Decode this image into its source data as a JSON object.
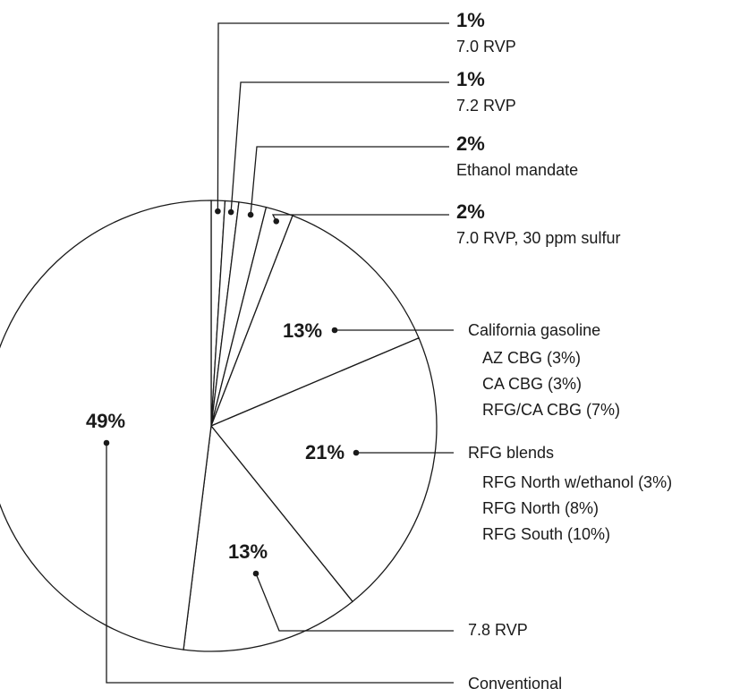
{
  "chart_data": {
    "type": "pie",
    "title": "",
    "slices": [
      {
        "value": 1,
        "label_pct": "1%",
        "name": "7.0 RVP",
        "details": []
      },
      {
        "value": 1,
        "label_pct": "1%",
        "name": "7.2 RVP",
        "details": []
      },
      {
        "value": 2,
        "label_pct": "2%",
        "name": "Ethanol mandate",
        "details": []
      },
      {
        "value": 2,
        "label_pct": "2%",
        "name": "7.0 RVP, 30 ppm sulfur",
        "details": []
      },
      {
        "value": 13,
        "label_pct": "13%",
        "name": "California gasoline",
        "details": [
          "AZ CBG (3%)",
          "CA CBG (3%)",
          "RFG/CA CBG (7%)"
        ]
      },
      {
        "value": 21,
        "label_pct": "21%",
        "name": "RFG blends",
        "details": [
          "RFG North w/ethanol (3%)",
          "RFG North (8%)",
          "RFG South (10%)"
        ]
      },
      {
        "value": 13,
        "label_pct": "13%",
        "name": "7.8 RVP",
        "details": []
      },
      {
        "value": 49,
        "label_pct": "49%",
        "name": "Conventional",
        "details": []
      }
    ],
    "start_angle": "12 o'clock",
    "direction": "clockwise"
  },
  "colors": {
    "ink": "#1a1a1a",
    "fill": "#ffffff"
  }
}
